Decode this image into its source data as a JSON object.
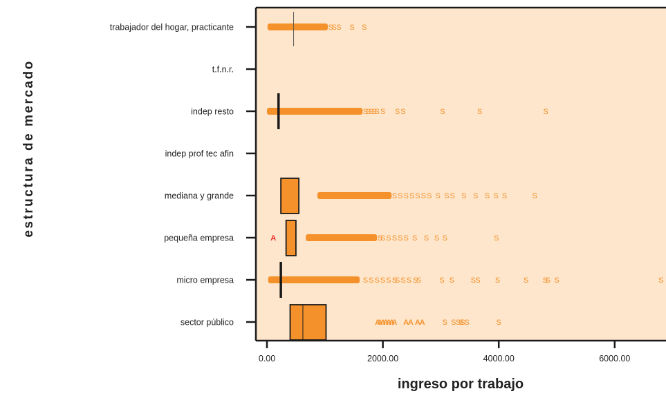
{
  "chart_data": {
    "type": "boxplot",
    "xlabel": "ingreso por trabajo",
    "ylabel": "estructura de mercado",
    "xlim": [
      -200,
      6900
    ],
    "xticks": [
      0,
      2000,
      4000,
      6000
    ],
    "xtick_labels": [
      "0.00",
      "2000.00",
      "4000.00",
      "6000.00"
    ],
    "grid": false,
    "colors": {
      "panel": "#fde6cc",
      "box": "#f5912a",
      "marker": "#f5912a",
      "extreme": "#ee2a24",
      "line": "#1a1a1a"
    },
    "categories": [
      {
        "name": "trabajador del hogar, practicante",
        "box": null,
        "median": 460,
        "dense": [
          [
            10,
            1050
          ]
        ],
        "outliers": [
          1100,
          1160,
          1240,
          1470,
          1680
        ],
        "extremes": []
      },
      {
        "name": "t.f.n.r.",
        "box": null,
        "median": null,
        "dense": [],
        "outliers": [],
        "extremes": []
      },
      {
        "name": "indep resto",
        "box": null,
        "median": 200,
        "dense": [
          [
            0,
            1650
          ]
        ],
        "outliers": [
          1700,
          1750,
          1800,
          1850,
          1900,
          2000,
          2250,
          2350,
          3030,
          3670,
          4810
        ],
        "extremes": []
      },
      {
        "name": "indep prof tec afin",
        "box": null,
        "median": null,
        "dense": [],
        "outliers": [],
        "extremes": []
      },
      {
        "name": "mediana y grande",
        "box": [
          240,
          550
        ],
        "median": null,
        "dense": [
          [
            870,
            2150
          ]
        ],
        "outliers": [
          2200,
          2300,
          2400,
          2500,
          2600,
          2700,
          2800,
          2950,
          3100,
          3200,
          3400,
          3600,
          3800,
          3950,
          4100,
          4620
        ],
        "extremes": []
      },
      {
        "name": "pequeña empresa",
        "box": [
          330,
          500
        ],
        "median": null,
        "dense": [
          [
            670,
            1900
          ]
        ],
        "outliers": [
          1950,
          2000,
          2100,
          2200,
          2300,
          2400,
          2550,
          2750,
          2930,
          3070,
          3960
        ],
        "extremes": [
          110
        ]
      },
      {
        "name": "micro empresa",
        "box": null,
        "median": 240,
        "dense": [
          [
            20,
            1600
          ]
        ],
        "outliers": [
          1700,
          1800,
          1900,
          2000,
          2100,
          2200,
          2250,
          2350,
          2450,
          2560,
          2620,
          3020,
          3190,
          3560,
          3640,
          3980,
          4470,
          4800,
          4850,
          5000,
          6800
        ],
        "extremes": []
      },
      {
        "name": "sector público",
        "box": [
          400,
          1020
        ],
        "median": 620,
        "dense": [],
        "outliers": [
          3070,
          3220,
          3300,
          3350,
          3380,
          3450,
          4000
        ],
        "extremes": [
          1910,
          1950,
          2000,
          2050,
          2100,
          2150,
          2200,
          2400,
          2480,
          2600,
          2680
        ]
      }
    ]
  }
}
